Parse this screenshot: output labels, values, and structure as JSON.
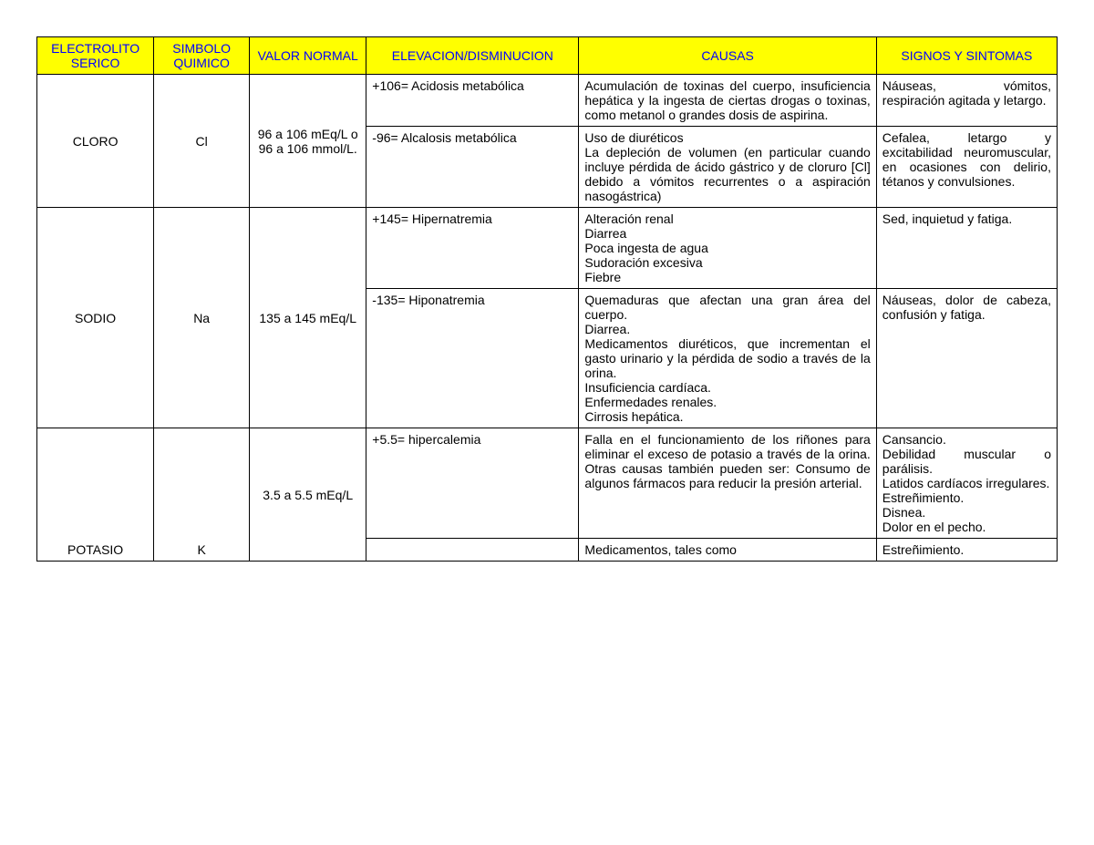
{
  "colors": {
    "header_bg": "#ffff00",
    "header_text": "#0000ff",
    "border": "#000000",
    "background": "#ffffff",
    "body_text": "#000000"
  },
  "typography": {
    "font_family": "Arial",
    "font_size_pt": 11
  },
  "table": {
    "type": "table",
    "columns": [
      {
        "key": "electrolito",
        "label": "ELECTROLITO SERICO",
        "width_pct": 11,
        "align": "center"
      },
      {
        "key": "simbolo",
        "label": "SIMBOLO QUIMICO",
        "width_pct": 9,
        "align": "center"
      },
      {
        "key": "valor",
        "label": "VALOR NORMAL",
        "width_pct": 11,
        "align": "center"
      },
      {
        "key": "elev",
        "label": "ELEVACION/DISMINUCION",
        "width_pct": 20,
        "align": "left"
      },
      {
        "key": "causas",
        "label": "CAUSAS",
        "width_pct": 28,
        "align": "justify"
      },
      {
        "key": "signos",
        "label": "SIGNOS Y SINTOMAS",
        "width_pct": 17,
        "align": "justify"
      }
    ],
    "groups": [
      {
        "electrolito": "CLORO",
        "simbolo": "Cl",
        "valor": "96 a 106 mEq/L o 96 a 106 mmol/L.",
        "rows": [
          {
            "elev": "+106= Acidosis metabólica",
            "causas": "Acumulación de toxinas del cuerpo, insuficiencia hepática y la ingesta de ciertas drogas o toxinas, como metanol o grandes dosis de aspirina.",
            "signos": "Náuseas, vómitos, respiración agitada y letargo."
          },
          {
            "elev": "-96= Alcalosis metabólica",
            "causas": "Uso de diuréticos\nLa depleción de volumen (en particular cuando incluye pérdida de ácido gástrico y de cloruro [Cl] debido a vómitos recurrentes o a aspiración nasogástrica)",
            "signos": "Cefalea, letargo y excitabilidad neuromuscular, en ocasiones con delirio, tétanos y convulsiones."
          }
        ]
      },
      {
        "electrolito": "SODIO",
        "simbolo": "Na",
        "valor": "135 a 145 mEq/L",
        "rows": [
          {
            "elev": "+145= Hipernatremia",
            "causas": "Alteración renal\nDiarrea\nPoca ingesta de agua\nSudoración excesiva\nFiebre",
            "signos": "Sed, inquietud y fatiga."
          },
          {
            "elev": "-135= Hiponatremia",
            "causas": "Quemaduras que afectan una gran área del cuerpo.\nDiarrea.\nMedicamentos diuréticos, que incrementan el gasto urinario y la pérdida de sodio a través de la orina.\nInsuficiencia cardíaca.\nEnfermedades renales.\nCirrosis hepática.",
            "signos": "Náuseas, dolor de cabeza, confusión y fatiga."
          }
        ]
      },
      {
        "electrolito": "POTASIO",
        "simbolo": "K",
        "valor": "3.5 a 5.5 mEq/L",
        "rows": [
          {
            "elev": "+5.5= hipercalemia",
            "causas": "Falla en el funcionamiento de los riñones para eliminar el exceso de potasio a través de la orina. Otras causas también pueden ser: Consumo de algunos fármacos para reducir la presión arterial.",
            "signos": "Cansancio.\nDebilidad muscular o parálisis.\nLatidos cardíacos irregulares.\nEstreñimiento.\nDisnea.\nDolor en el pecho."
          },
          {
            "elev": "",
            "causas": "Medicamentos, tales como",
            "signos": "Estreñimiento."
          }
        ]
      }
    ]
  }
}
